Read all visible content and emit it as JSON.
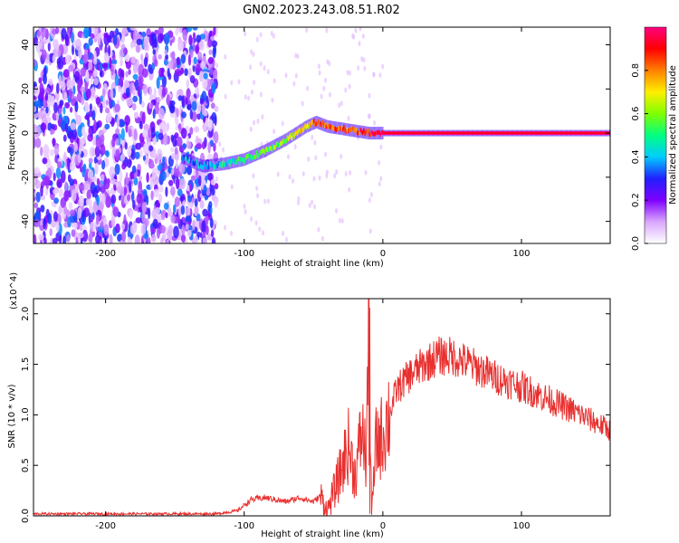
{
  "title": "GN02.2023.243.08.51.R02",
  "chart_data": [
    {
      "type": "heatmap",
      "xlabel": "Height of straight line (km)",
      "ylabel": "Frequency (Hz)",
      "xlim": [
        -252,
        164
      ],
      "ylim": [
        -50,
        48
      ],
      "xticks": [
        -200,
        -100,
        0,
        100
      ],
      "yticks": [
        -40,
        -20,
        0,
        20,
        40
      ],
      "colorbar": {
        "label": "Normalized spectral amplitude",
        "range": [
          0,
          1
        ],
        "ticks": [
          "0.0",
          "0.2",
          "0.4",
          "0.6",
          "0.8"
        ],
        "colors": [
          "#ffffff",
          "#d9a6ff",
          "#8000ff",
          "#2020ff",
          "#00ccff",
          "#00ff80",
          "#80ff00",
          "#ffee00",
          "#ff8000",
          "#ff0000",
          "#ff0080"
        ]
      },
      "noise_region_x": [
        -252,
        -120
      ],
      "ridge": {
        "x": [
          -145,
          -130,
          -115,
          -100,
          -85,
          -70,
          -55,
          -48,
          -40,
          -30,
          -20,
          -10,
          0,
          164
        ],
        "y": [
          -11,
          -15,
          -14,
          -12,
          -8,
          -3,
          3,
          5,
          3,
          2,
          1,
          0,
          0,
          0
        ],
        "amplitude": [
          0.35,
          0.4,
          0.45,
          0.5,
          0.55,
          0.6,
          0.7,
          0.85,
          0.8,
          0.8,
          0.85,
          0.9,
          1.0,
          1.0
        ]
      }
    },
    {
      "type": "line",
      "xlabel": "Height of straight line (km)",
      "ylabel": "SNR (10 * v/v)",
      "y_multiplier": "(x10^4)",
      "xlim": [
        -252,
        164
      ],
      "ylim": [
        0,
        2.15
      ],
      "xticks": [
        -200,
        -100,
        0,
        100
      ],
      "yticks": [
        "0.0",
        "0.5",
        "1.0",
        "1.5",
        "2.0"
      ],
      "color": "#e8302f",
      "series": [
        {
          "x": [
            -252,
            -200,
            -150,
            -120,
            -105,
            -95,
            -85,
            -70,
            -60,
            -50,
            -45,
            -40,
            -35,
            -30,
            -25,
            -20,
            -15,
            -12,
            -10,
            -8,
            -5,
            0,
            10,
            20,
            30,
            40,
            50,
            60,
            80,
            100,
            120,
            140,
            164
          ],
          "y": [
            0.02,
            0.02,
            0.02,
            0.02,
            0.05,
            0.16,
            0.18,
            0.14,
            0.18,
            0.14,
            0.2,
            0.05,
            0.25,
            0.45,
            0.7,
            0.4,
            0.85,
            0.55,
            2.12,
            0.0,
            0.7,
            0.8,
            1.25,
            1.4,
            1.5,
            1.58,
            1.58,
            1.52,
            1.38,
            1.28,
            1.15,
            1.02,
            0.85
          ]
        }
      ]
    }
  ]
}
